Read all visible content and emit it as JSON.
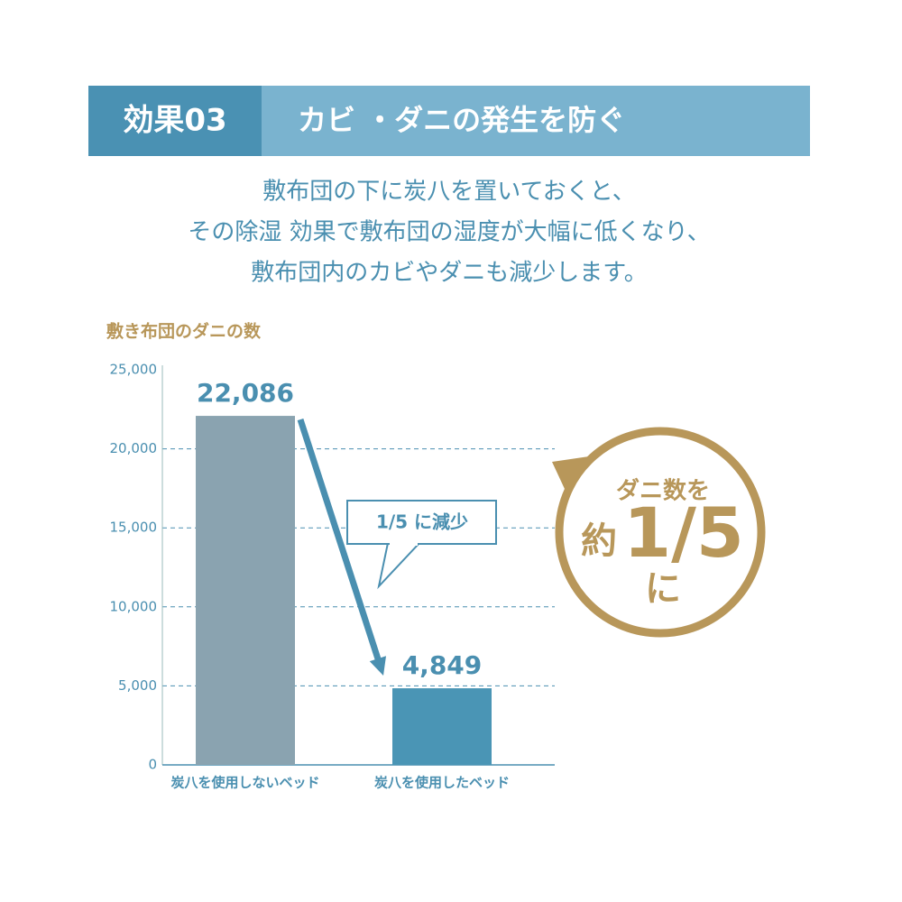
{
  "chart_data": {
    "type": "bar",
    "header_label": "効果03",
    "title": "カビ ・ダニの発生を防ぐ",
    "subtitle": [
      "敷布団の下に炭八を置いておくと、",
      "その除湿 効果で敷布団の湿度が大幅に低くなり、",
      "敷布団内のカビやダニも減少します。"
    ],
    "ylabel": "敷き布団のダニの数",
    "categories": [
      "炭八を使用しないベッド",
      "炭八を使用したベッド"
    ],
    "values": [
      22086,
      4849
    ],
    "value_labels": [
      "22,086",
      "4,849"
    ],
    "colors": [
      "#8aa3b0",
      "#4a95b5"
    ],
    "ylim": [
      0,
      25000
    ],
    "yticks": [
      0,
      {
        "value": 5000,
        "label": "5,000"
      },
      {
        "value": 10000,
        "label": "10,000"
      },
      {
        "value": 15000,
        "label": "15,000"
      },
      {
        "value": 20000,
        "label": "20,000"
      },
      {
        "value": 25000,
        "label": "25,000"
      }
    ],
    "grid": true,
    "callout": "1/5 に減少",
    "badge": [
      "ダニ数を",
      "約",
      "1/5",
      "に"
    ]
  }
}
